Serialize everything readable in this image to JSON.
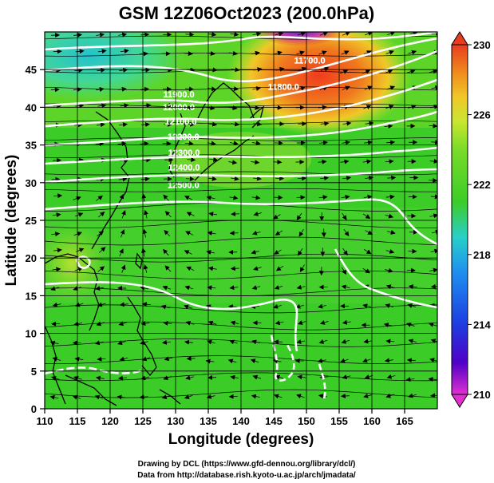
{
  "title": "GSM 12Z06Oct2023 (200.0hPa)",
  "x_axis": {
    "label": "Longitude (degrees)",
    "ticks": [
      "110",
      "115",
      "120",
      "125",
      "130",
      "135",
      "140",
      "145",
      "150",
      "155",
      "160",
      "165"
    ],
    "range": [
      110,
      170
    ]
  },
  "y_axis": {
    "label": "Latitude (degrees)",
    "ticks": [
      "0",
      "5",
      "10",
      "15",
      "20",
      "25",
      "30",
      "35",
      "40",
      "45"
    ],
    "range": [
      0,
      50
    ]
  },
  "colorbar": {
    "ticks": [
      "230",
      "226",
      "222",
      "218",
      "214",
      "210"
    ],
    "range": [
      210,
      230
    ],
    "colors": [
      "#e030d0",
      "#5000c8",
      "#1e3ce0",
      "#1e90f0",
      "#28d0c8",
      "#28c878",
      "#3ccc28",
      "#78dc28",
      "#c8e632",
      "#f0c828",
      "#f08c1e",
      "#e83c1e"
    ]
  },
  "contour_labels": [
    {
      "text": "11700.0",
      "lon": 150.5,
      "lat": 45.8
    },
    {
      "text": "11800.0",
      "lon": 146.5,
      "lat": 42.3
    },
    {
      "text": "11900.0",
      "lon": 130.5,
      "lat": 41.3
    },
    {
      "text": "12000.0",
      "lon": 130.5,
      "lat": 39.6
    },
    {
      "text": "12100.0",
      "lon": 130.8,
      "lat": 37.7
    },
    {
      "text": "12200.0",
      "lon": 131.2,
      "lat": 35.7
    },
    {
      "text": "12300.0",
      "lon": 131.3,
      "lat": 33.6
    },
    {
      "text": "12400.0",
      "lon": 131.3,
      "lat": 31.6
    },
    {
      "text": "12500.0",
      "lon": 131.2,
      "lat": 29.3
    }
  ],
  "credits": {
    "line1": "Drawing by DCL (https://www.gfd-dennou.org/library/dcl/)",
    "line2": "Data from http://database.rish.kyoto-u.ac.jp/arch/jmadata/"
  }
}
